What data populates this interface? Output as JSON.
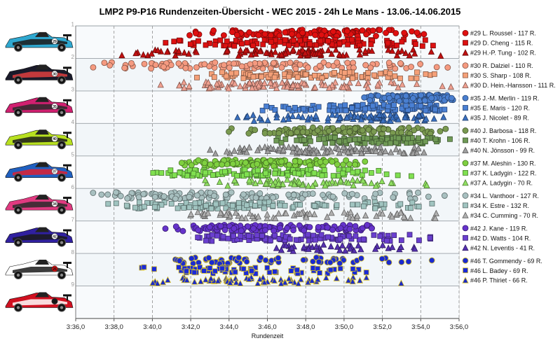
{
  "chart_data": {
    "type": "scatter",
    "title": "LMP2 P9-P16 Rundenzeiten-Übersicht - WEC 2015 - 24h Le Mans - 13.06.-14.06.2015",
    "xlabel": "Rundenzeit",
    "x_unit": "seconds",
    "xlim": [
      216,
      236
    ],
    "x_ticks": [
      216,
      218,
      220,
      222,
      224,
      226,
      228,
      230,
      232,
      234,
      236
    ],
    "x_tick_labels": [
      "3:36,0",
      "3:38,0",
      "3:40,0",
      "3:42,0",
      "3:44,0",
      "3:46,0",
      "3:48,0",
      "3:50,0",
      "3:52,0",
      "3:54,0",
      "3:56,0"
    ],
    "y_ticks": [
      1,
      2,
      3,
      4,
      5,
      6,
      7,
      8,
      9
    ],
    "ylim": [
      0.9,
      9.9
    ],
    "y_inverted": true,
    "grid": "vertical dashed at x ticks; horizontal solid at car boundaries",
    "legend_position": "right",
    "series": [
      {
        "name": "#29 L. Roussel - 117 R.",
        "marker": "circle",
        "color": "#e01010",
        "row": 1.12,
        "x_min": 221.6,
        "x_max": 234.8,
        "x_mode": 227.5,
        "count": 117
      },
      {
        "name": "#29 D. Cheng - 115 R.",
        "marker": "square",
        "color": "#dd1111",
        "row": 1.42,
        "x_min": 220.2,
        "x_max": 235.8,
        "x_mode": 228.0,
        "count": 115
      },
      {
        "name": "#29 H.-P. Tung - 102 R.",
        "marker": "triangle",
        "color": "#c01010",
        "row": 1.72,
        "x_min": 217.6,
        "x_max": 235.8,
        "x_mode": 228.0,
        "count": 102
      },
      {
        "name": "#30 R. Dalziel - 110 R.",
        "marker": "circle",
        "color": "#f59a80",
        "row": 2.12,
        "x_min": 216.2,
        "x_max": 235.8,
        "x_mode": 225.0,
        "count": 110
      },
      {
        "name": "#30 S. Sharp - 108 R.",
        "marker": "square",
        "color": "#f5a078",
        "row": 2.42,
        "x_min": 222.0,
        "x_max": 235.8,
        "x_mode": 227.0,
        "count": 108
      },
      {
        "name": "#30 D. Hein.-Hansson - 111 R.",
        "marker": "triangle",
        "color": "#f0a090",
        "row": 2.72,
        "x_min": 220.0,
        "x_max": 235.8,
        "x_mode": 226.5,
        "count": 111
      },
      {
        "name": "#35 J.-M. Merlin - 119 R.",
        "marker": "circle",
        "color": "#4a7fd0",
        "row": 3.12,
        "x_min": 231.0,
        "x_max": 235.8,
        "x_mode": 234.0,
        "count": 119
      },
      {
        "name": "#35 E. Maris - 120 R.",
        "marker": "square",
        "color": "#4a80d4",
        "row": 3.42,
        "x_min": 224.5,
        "x_max": 235.8,
        "x_mode": 233.0,
        "count": 120
      },
      {
        "name": "#35 J. Nicolet - 89 R.",
        "marker": "triangle",
        "color": "#3a70c0",
        "row": 3.72,
        "x_min": 224.2,
        "x_max": 235.8,
        "x_mode": 232.0,
        "count": 89
      },
      {
        "name": "#40 J. Barbosa - 118 R.",
        "marker": "circle",
        "color": "#7a9a50",
        "row": 4.12,
        "x_min": 223.5,
        "x_max": 235.8,
        "x_mode": 230.0,
        "count": 118
      },
      {
        "name": "#40 T. Krohn - 106 R.",
        "marker": "square",
        "color": "#6f9a55",
        "row": 4.42,
        "x_min": 226.0,
        "x_max": 235.8,
        "x_mode": 232.0,
        "count": 106
      },
      {
        "name": "#40 N. Jönsson - 99 R.",
        "marker": "triangle",
        "color": "#a0a0a0",
        "row": 4.72,
        "x_min": 222.5,
        "x_max": 235.8,
        "x_mode": 229.0,
        "count": 99
      },
      {
        "name": "#37 M. Aleshin - 130 R.",
        "marker": "circle",
        "color": "#7fd040",
        "row": 5.12,
        "x_min": 221.5,
        "x_max": 231.5,
        "x_mode": 225.5,
        "count": 130
      },
      {
        "name": "#37 K. Ladygin - 122 R.",
        "marker": "square",
        "color": "#80e050",
        "row": 5.42,
        "x_min": 219.5,
        "x_max": 234.0,
        "x_mode": 226.0,
        "count": 122
      },
      {
        "name": "#37 A. Ladygin - 70 R.",
        "marker": "triangle",
        "color": "#90e060",
        "row": 5.72,
        "x_min": 221.5,
        "x_max": 234.5,
        "x_mode": 226.5,
        "count": 70
      },
      {
        "name": "#34 L. Vanthoor - 127 R.",
        "marker": "circle",
        "color": "#a8c0c0",
        "row": 6.12,
        "x_min": 216.2,
        "x_max": 235.8,
        "x_mode": 221.0,
        "count": 127
      },
      {
        "name": "#34 K. Estre - 132 R.",
        "marker": "square",
        "color": "#a0c4c0",
        "row": 6.42,
        "x_min": 216.8,
        "x_max": 235.8,
        "x_mode": 224.0,
        "count": 132
      },
      {
        "name": "#34 C. Cumming - 70 R.",
        "marker": "triangle",
        "color": "#b0b0b0",
        "row": 6.72,
        "x_min": 221.0,
        "x_max": 235.8,
        "x_mode": 228.0,
        "count": 70
      },
      {
        "name": "#42 J. Kane - 119 R.",
        "marker": "circle",
        "color": "#6633cc",
        "row": 7.12,
        "x_min": 220.5,
        "x_max": 232.5,
        "x_mode": 225.5,
        "count": 119
      },
      {
        "name": "#42 D. Watts - 104 R.",
        "marker": "square",
        "color": "#6a3fcf",
        "row": 7.42,
        "x_min": 221.8,
        "x_max": 235.8,
        "x_mode": 225.0,
        "count": 104
      },
      {
        "name": "#42 N. Leventis - 41 R.",
        "marker": "triangle",
        "color": "#5530b0",
        "row": 7.72,
        "x_min": 225.5,
        "x_max": 235.8,
        "x_mode": 230.0,
        "count": 41
      },
      {
        "name": "#46 T. Gommendy - 69 R.",
        "marker": "circle",
        "color": "#1a2ad0",
        "row": 8.12,
        "x_min": 220.6,
        "x_max": 235.0,
        "x_mode": 222.0,
        "count": 69
      },
      {
        "name": "#46 L. Badey - 69 R.",
        "marker": "square",
        "color": "#1a2ad8",
        "row": 8.42,
        "x_min": 219.2,
        "x_max": 233.5,
        "x_mode": 222.0,
        "count": 69
      },
      {
        "name": "#46 P. Thiriet - 66 R.",
        "marker": "triangle",
        "color": "#1a2ac8",
        "row": 8.72,
        "x_min": 219.3,
        "x_max": 233.5,
        "x_mode": 222.0,
        "count": 66
      }
    ],
    "cars": [
      {
        "number": "#29",
        "livery": [
          "#2fa8d0",
          "#1a1a1a",
          "#ffffff"
        ]
      },
      {
        "number": "#30",
        "livery": [
          "#1a1a2a",
          "#e04040",
          "#ffffff"
        ]
      },
      {
        "number": "#35",
        "livery": [
          "#d02070",
          "#2a2a2a",
          "#ffffff"
        ]
      },
      {
        "number": "#40",
        "livery": [
          "#b8e020",
          "#1a1a1a",
          "#ffffff"
        ]
      },
      {
        "number": "#37",
        "livery": [
          "#2060c0",
          "#e02030",
          "#ffffff"
        ]
      },
      {
        "number": "#34",
        "livery": [
          "#e03a80",
          "#2a2a2a",
          "#ffffff"
        ]
      },
      {
        "number": "#42",
        "livery": [
          "#3020a0",
          "#1a1a1a",
          "#ffffff"
        ]
      },
      {
        "number": "#26",
        "livery": [
          "#ffffff",
          "#1a1a1a",
          "#d01010"
        ]
      },
      {
        "number": "#46",
        "livery": [
          "#d01020",
          "#ffffff",
          "#1a1a1a"
        ]
      }
    ]
  }
}
